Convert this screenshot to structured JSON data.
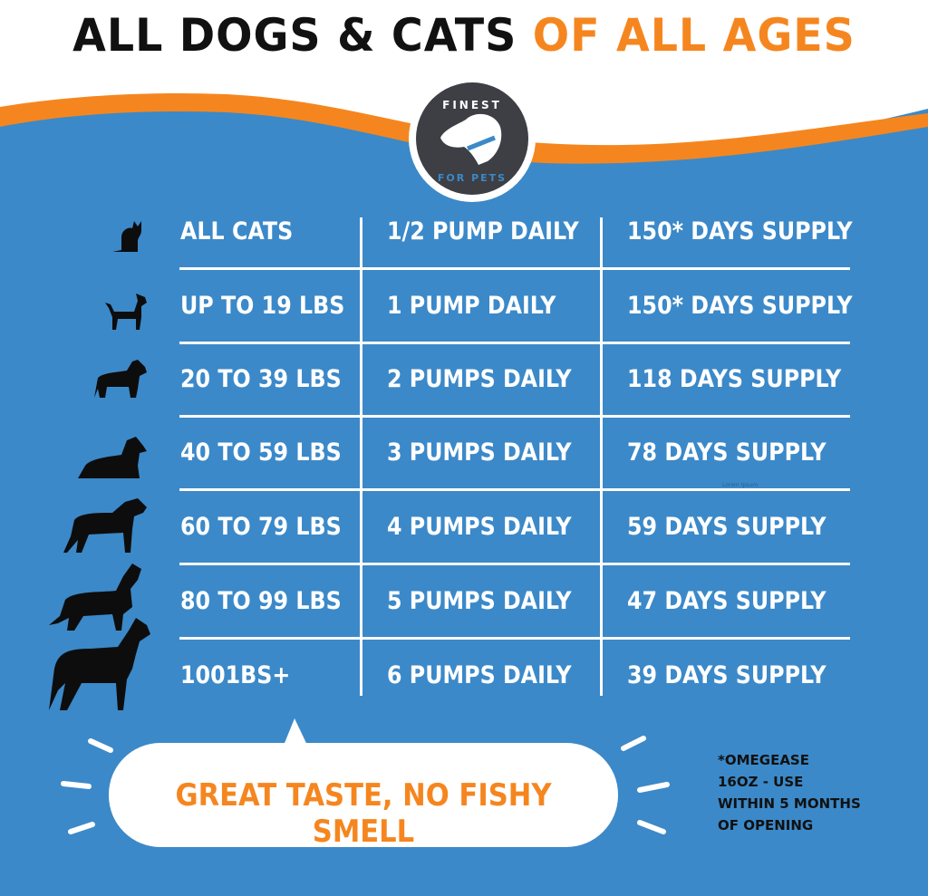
{
  "title": {
    "part1": "ALL DOGS & CATS ",
    "part2": "OF ALL AGES"
  },
  "logo": {
    "top_text": "FINEST",
    "bottom_text": "FOR PETS"
  },
  "colors": {
    "background": "#3b89c9",
    "accent": "#f5861f",
    "text": "#ffffff",
    "logo": "#3d3f44"
  },
  "table": {
    "rows": [
      {
        "icon": "cat-icon",
        "size": "ALL CATS",
        "dose": "1/2 PUMP DAILY",
        "supply": "150* DAYS SUPPLY"
      },
      {
        "icon": "small-dog-icon",
        "size": "UP TO 19 LBS",
        "dose": "1 PUMP DAILY",
        "supply": "150* DAYS SUPPLY"
      },
      {
        "icon": "terrier-icon",
        "size": "20 TO 39 LBS",
        "dose": "2 PUMPS DAILY",
        "supply": "118 DAYS SUPPLY"
      },
      {
        "icon": "scottie-icon",
        "size": "40 TO 59 LBS",
        "dose": "3 PUMPS DAILY",
        "supply": "78 DAYS SUPPLY"
      },
      {
        "icon": "airedale-icon",
        "size": "60 TO 79 LBS",
        "dose": "4 PUMPS DAILY",
        "supply": "59 DAYS SUPPLY"
      },
      {
        "icon": "retriever-icon",
        "size": "80 TO 99 LBS",
        "dose": "5 PUMPS DAILY",
        "supply": "47 DAYS SUPPLY"
      },
      {
        "icon": "large-dog-icon",
        "size": "1001BS+",
        "dose": "6 PUMPS DAILY",
        "supply": "39 DAYS SUPPLY"
      }
    ]
  },
  "watermark": "Lorem Ipsum",
  "bubble": "GREAT TASTE, NO FISHY SMELL",
  "note": [
    "*OMEGEASE",
    "16OZ - USE",
    "WITHIN 5 MONTHS",
    "OF OPENING"
  ]
}
